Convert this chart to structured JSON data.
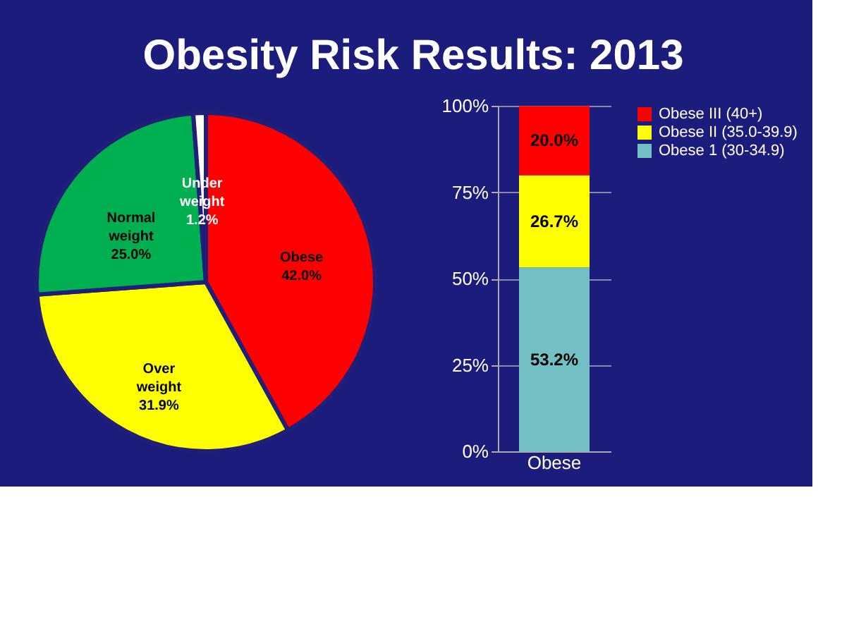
{
  "chart_data": [
    {
      "type": "pie",
      "title": "Obesity Risk Results: 2013",
      "categories": [
        "Obese",
        "Over weight",
        "Normal weight",
        "Under weight"
      ],
      "values": [
        42.0,
        31.9,
        25.0,
        1.2
      ],
      "colors": [
        "#ff0000",
        "#ffff00",
        "#00b050",
        "#ffffff"
      ],
      "value_labels": [
        "42.0%",
        "31.9%",
        "25.0%",
        "1.2%"
      ],
      "legend": false
    },
    {
      "type": "bar",
      "stacked": true,
      "categories": [
        "Obese"
      ],
      "series": [
        {
          "name": "Obese 1 (30-34.9)",
          "color": "#72bfc4",
          "values": [
            53.2
          ],
          "value_labels": [
            "53.2%"
          ]
        },
        {
          "name": "Obese II (35.0-39.9)",
          "color": "#ffff00",
          "values": [
            26.7
          ],
          "value_labels": [
            "26.7%"
          ]
        },
        {
          "name": "Obese III (40+)",
          "color": "#ff0000",
          "values": [
            20.0
          ],
          "value_labels": [
            "20.0%"
          ]
        }
      ],
      "ylim": [
        0,
        100
      ],
      "yticks": [
        {
          "value": 0,
          "label": "0%"
        },
        {
          "value": 25,
          "label": "25%"
        },
        {
          "value": 50,
          "label": "50%"
        },
        {
          "value": 75,
          "label": "75%"
        },
        {
          "value": 100,
          "label": "100%"
        }
      ],
      "grid": "y",
      "legend": "right"
    }
  ]
}
